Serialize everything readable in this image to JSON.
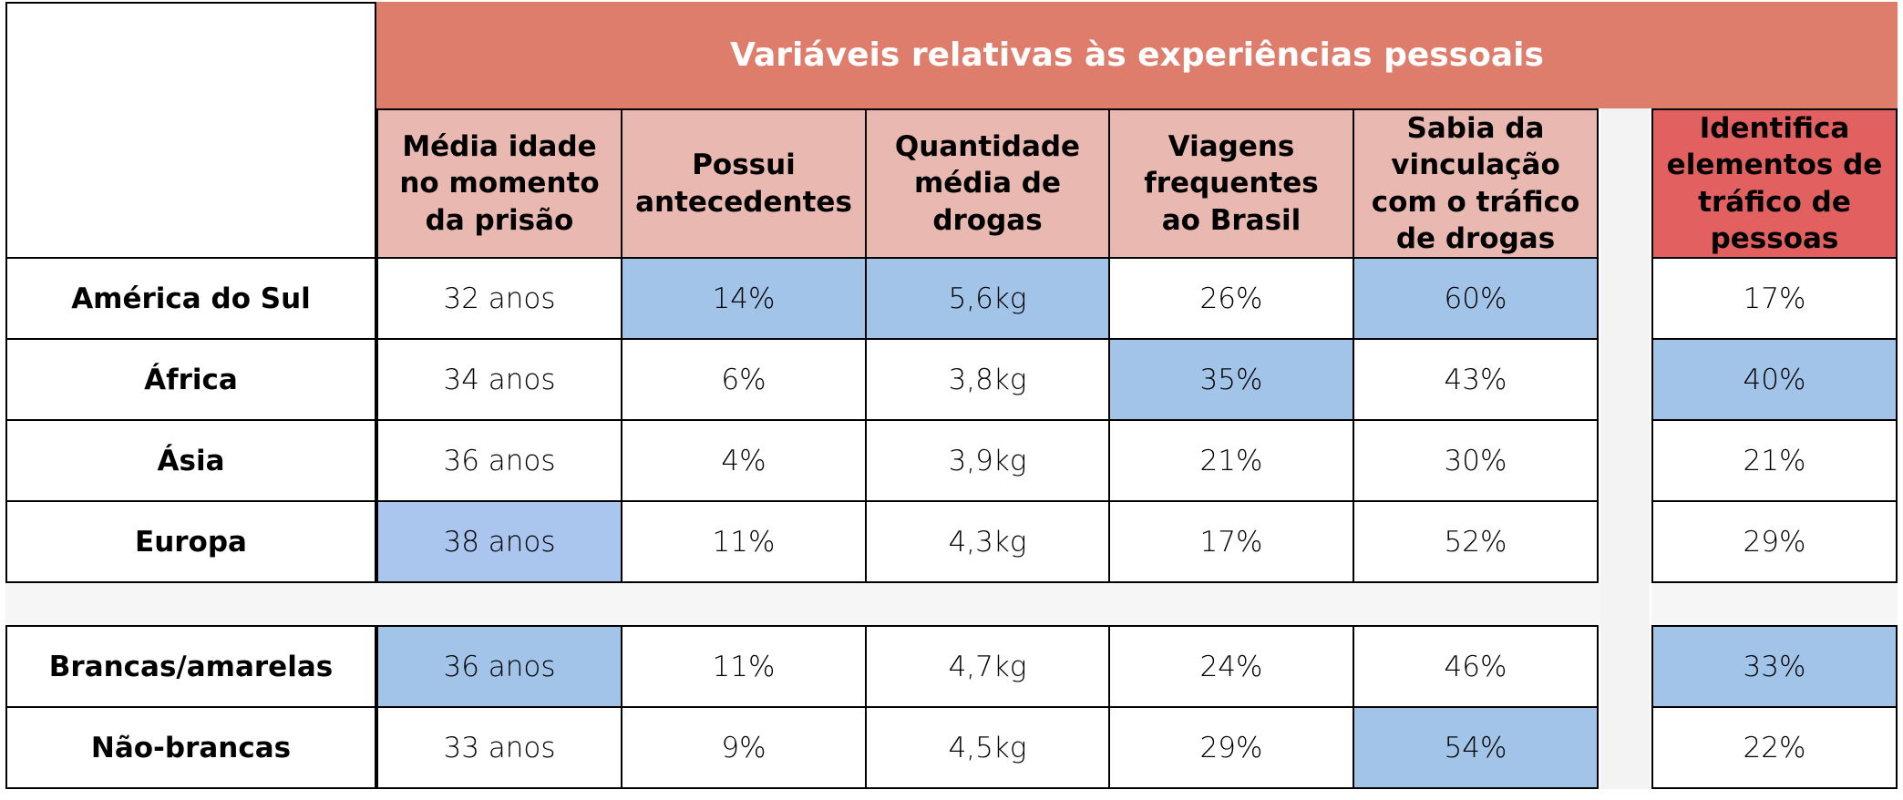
{
  "header": {
    "title": "Variáveis relativas às experiências pessoais",
    "columns": [
      "Média idade no momento da prisão",
      "Possui antecedentes",
      "Quantidade média de drogas",
      "Viagens frequentes ao Brasil",
      "Sabia da vinculação com o tráfico de drogas",
      "Identifica elementos de tráfico de pessoas"
    ]
  },
  "group_regions": {
    "rows": [
      {
        "label": "América do Sul",
        "values": [
          "32 anos",
          "14%",
          "5,6kg",
          "26%",
          "60%",
          "17%"
        ]
      },
      {
        "label": "África",
        "values": [
          "34 anos",
          "6%",
          "3,8kg",
          "35%",
          "43%",
          "40%"
        ]
      },
      {
        "label": "Ásia",
        "values": [
          "36 anos",
          "4%",
          "3,9kg",
          "21%",
          "30%",
          "21%"
        ]
      },
      {
        "label": "Europa",
        "values": [
          "38 anos",
          "11%",
          "4,3kg",
          "17%",
          "52%",
          "29%"
        ]
      }
    ]
  },
  "group_race": {
    "rows": [
      {
        "label": "Brancas/amarelas",
        "values": [
          "36 anos",
          "11%",
          "4,7kg",
          "24%",
          "46%",
          "33%"
        ]
      },
      {
        "label": "Não-brancas",
        "values": [
          "33 anos",
          "9%",
          "4,5kg",
          "29%",
          "54%",
          "22%"
        ]
      }
    ]
  },
  "colors": {
    "title_bg": "#df7d6d",
    "header_bg": "#e8b8b1",
    "last_header_bg": "#e2605f",
    "highlight": "#a2c4e8"
  }
}
